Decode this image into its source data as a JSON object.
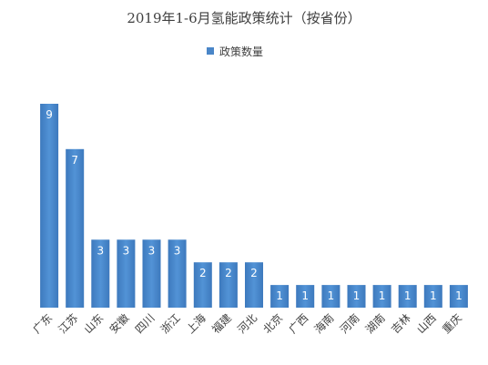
{
  "chart_data": {
    "type": "bar",
    "title": "2019年1-6月氢能政策统计（按省份）",
    "xlabel": "",
    "ylabel": "",
    "categories": [
      "广东",
      "江苏",
      "山东",
      "安徽",
      "四川",
      "浙江",
      "上海",
      "福建",
      "河北",
      "北京",
      "广西",
      "海南",
      "河南",
      "湖南",
      "吉林",
      "山西",
      "重庆"
    ],
    "series": [
      {
        "name": "政策数量",
        "values": [
          9,
          7,
          3,
          3,
          3,
          3,
          2,
          2,
          2,
          1,
          1,
          1,
          1,
          1,
          1,
          1,
          1
        ]
      }
    ],
    "data_labels": [
      "9",
      "7",
      "3",
      "3",
      "3",
      "3",
      "2",
      "2",
      "2",
      "1",
      "1",
      "1",
      "1",
      "1",
      "1",
      "1",
      "1"
    ],
    "ylim": [
      0,
      9
    ],
    "grid": false,
    "legend_position": "top-center",
    "bar_color": "#4a86c8",
    "bar_color_dark": "#2f6bb0"
  }
}
